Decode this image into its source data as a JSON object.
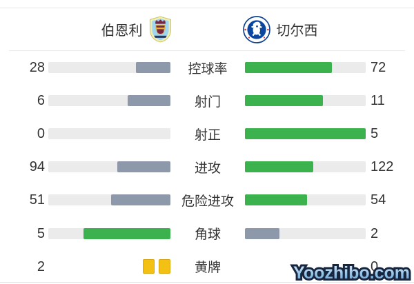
{
  "header": {
    "home": {
      "name": "伯恩利"
    },
    "away": {
      "name": "切尔西"
    }
  },
  "stats": {
    "rows": [
      {
        "type": "bars",
        "label": "控球率",
        "left": {
          "value": "28",
          "pct": 28,
          "color": "gray"
        },
        "right": {
          "value": "72",
          "pct": 72,
          "color": "green"
        }
      },
      {
        "type": "bars",
        "label": "射门",
        "left": {
          "value": "6",
          "pct": 35.3,
          "color": "gray"
        },
        "right": {
          "value": "11",
          "pct": 64.7,
          "color": "green"
        }
      },
      {
        "type": "bars",
        "label": "射正",
        "left": {
          "value": "0",
          "pct": 0,
          "color": "gray"
        },
        "right": {
          "value": "5",
          "pct": 100,
          "color": "green"
        }
      },
      {
        "type": "bars",
        "label": "进攻",
        "left": {
          "value": "94",
          "pct": 43.5,
          "color": "gray"
        },
        "right": {
          "value": "122",
          "pct": 56.5,
          "color": "green"
        }
      },
      {
        "type": "bars",
        "label": "危险进攻",
        "left": {
          "value": "51",
          "pct": 48.6,
          "color": "gray"
        },
        "right": {
          "value": "54",
          "pct": 51.4,
          "color": "green"
        }
      },
      {
        "type": "bars",
        "label": "角球",
        "left": {
          "value": "5",
          "pct": 71.4,
          "color": "green"
        },
        "right": {
          "value": "2",
          "pct": 28.6,
          "color": "gray"
        }
      },
      {
        "type": "cards",
        "label": "黄牌",
        "left": {
          "value": "2",
          "cards": 2
        },
        "right": {
          "value": "0",
          "cards": 0
        }
      }
    ]
  },
  "chart_data": {
    "type": "bar",
    "categories": [
      "控球率",
      "射门",
      "射正",
      "进攻",
      "危险进攻",
      "角球",
      "黄牌"
    ],
    "series": [
      {
        "name": "伯恩利",
        "values": [
          28,
          6,
          0,
          94,
          51,
          5,
          2
        ]
      },
      {
        "name": "切尔西",
        "values": [
          72,
          11,
          5,
          122,
          54,
          2,
          0
        ]
      }
    ],
    "layout": "paired horizontal bars, left team anchored right, right team anchored left, bar length = value / (home+away)"
  },
  "watermark": {
    "text": "Yoozhibo.com"
  },
  "colors": {
    "green": "#3bb24e",
    "gray": "#8d99aa",
    "track": "#ebebeb",
    "card_fill": "#f2c114",
    "card_border": "#d9a40a",
    "divider": "#e9e9e9"
  }
}
